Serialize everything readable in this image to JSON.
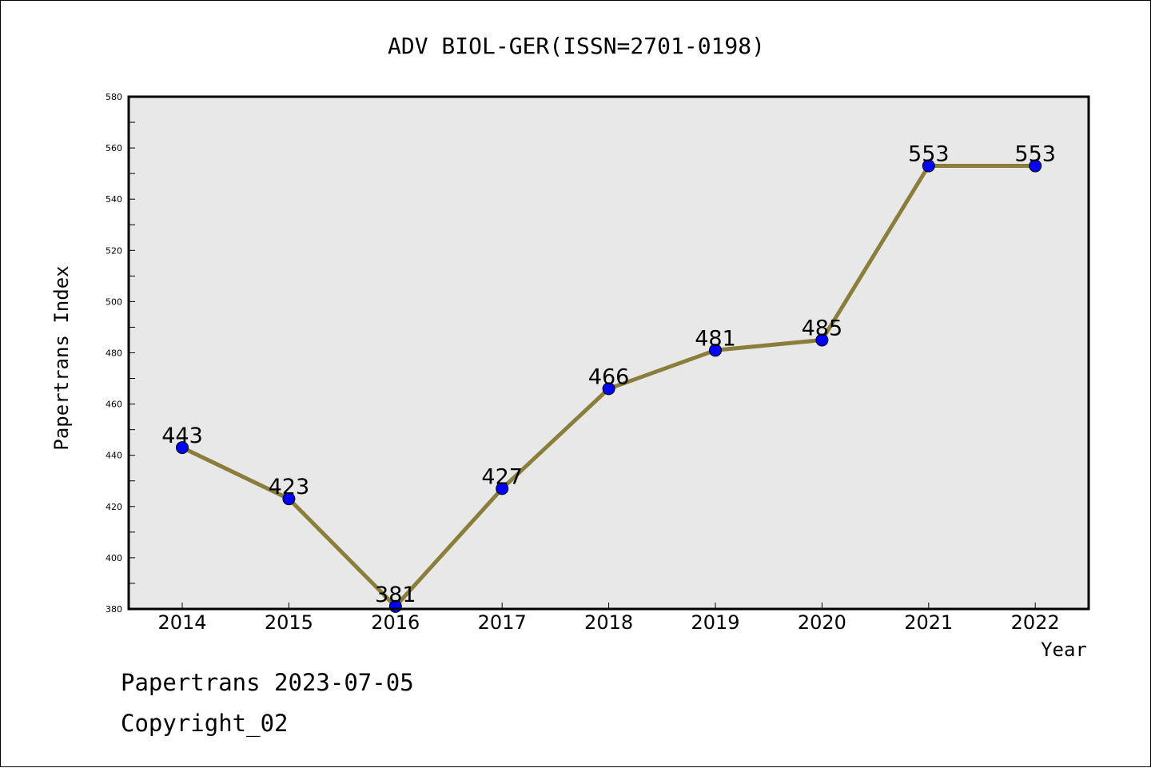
{
  "chart_data": {
    "type": "line",
    "title": "ADV BIOL-GER(ISSN=2701-0198)",
    "xlabel": "Year",
    "ylabel": "Papertrans Index",
    "categories": [
      "2014",
      "2015",
      "2016",
      "2017",
      "2018",
      "2019",
      "2020",
      "2021",
      "2022"
    ],
    "series": [
      {
        "values": [
          443,
          423,
          381,
          427,
          466,
          481,
          485,
          553,
          553
        ]
      }
    ],
    "data_labels": [
      "443",
      "423",
      "381",
      "427",
      "466",
      "481",
      "485",
      "553",
      "553"
    ],
    "ylim": [
      380,
      580
    ],
    "yticks": [
      "380",
      "400",
      "420",
      "440",
      "460",
      "480",
      "500",
      "520",
      "540",
      "560",
      "580"
    ],
    "grid": false,
    "colors": {
      "line": "#8b7d3a",
      "marker": "#0000ff",
      "plot_background": "#e8e8e8"
    }
  },
  "footer": {
    "line1": "Papertrans 2023-07-05",
    "line2": "Copyright_02"
  }
}
